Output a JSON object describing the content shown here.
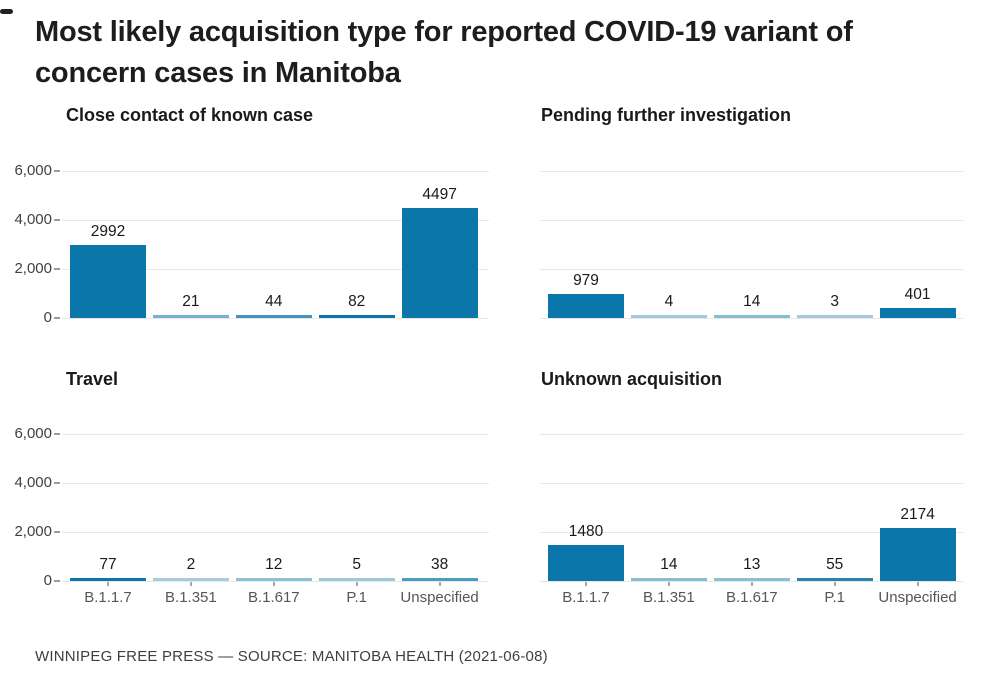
{
  "header": {
    "title_line1": "Most likely acquisition type for reported COVID-19 variant of",
    "title_line2": "concern cases in Manitoba"
  },
  "footer": {
    "source_credit": "WINNIPEG FREE PRESS — SOURCE: MANITOBA HEALTH (2021-06-08)"
  },
  "chart_data": {
    "type": "bar",
    "title": "Most likely acquisition type for reported COVID-19 variant of concern cases in Manitoba",
    "categories": [
      "B.1.1.7",
      "B.1.351",
      "B.1.617",
      "P.1",
      "Unspecified"
    ],
    "panels": [
      {
        "title": "Close contact of known case",
        "values": [
          2992,
          21,
          44,
          82,
          4497
        ]
      },
      {
        "title": "Pending further investigation",
        "values": [
          979,
          4,
          14,
          3,
          401
        ]
      },
      {
        "title": "Travel",
        "values": [
          77,
          2,
          12,
          5,
          38
        ]
      },
      {
        "title": "Unknown acquisition",
        "values": [
          1480,
          14,
          13,
          55,
          2174
        ]
      }
    ],
    "ylim": [
      0,
      6000
    ],
    "yticks": [
      {
        "value": 0,
        "label": "0"
      },
      {
        "value": 2000,
        "label": "2,000"
      },
      {
        "value": 4000,
        "label": "4,000"
      },
      {
        "value": 6000,
        "label": "6,000"
      }
    ],
    "grid": "horizontal only",
    "legend": "none",
    "bar_labels": "value above each bar",
    "colors": {
      "bar": "#0b76a9",
      "gridline": "#e7e7e7",
      "title_text": "#1d1d1b",
      "panel_title_text": "#1a1a1a",
      "ytick_text": "#414042",
      "xtick_text": "#565659",
      "value_label_text": "#1a1a1a",
      "source_text": "#3f3f41"
    },
    "source": "WINNIPEG FREE PRESS — SOURCE: MANITOBA HEALTH (2021-06-08)"
  }
}
